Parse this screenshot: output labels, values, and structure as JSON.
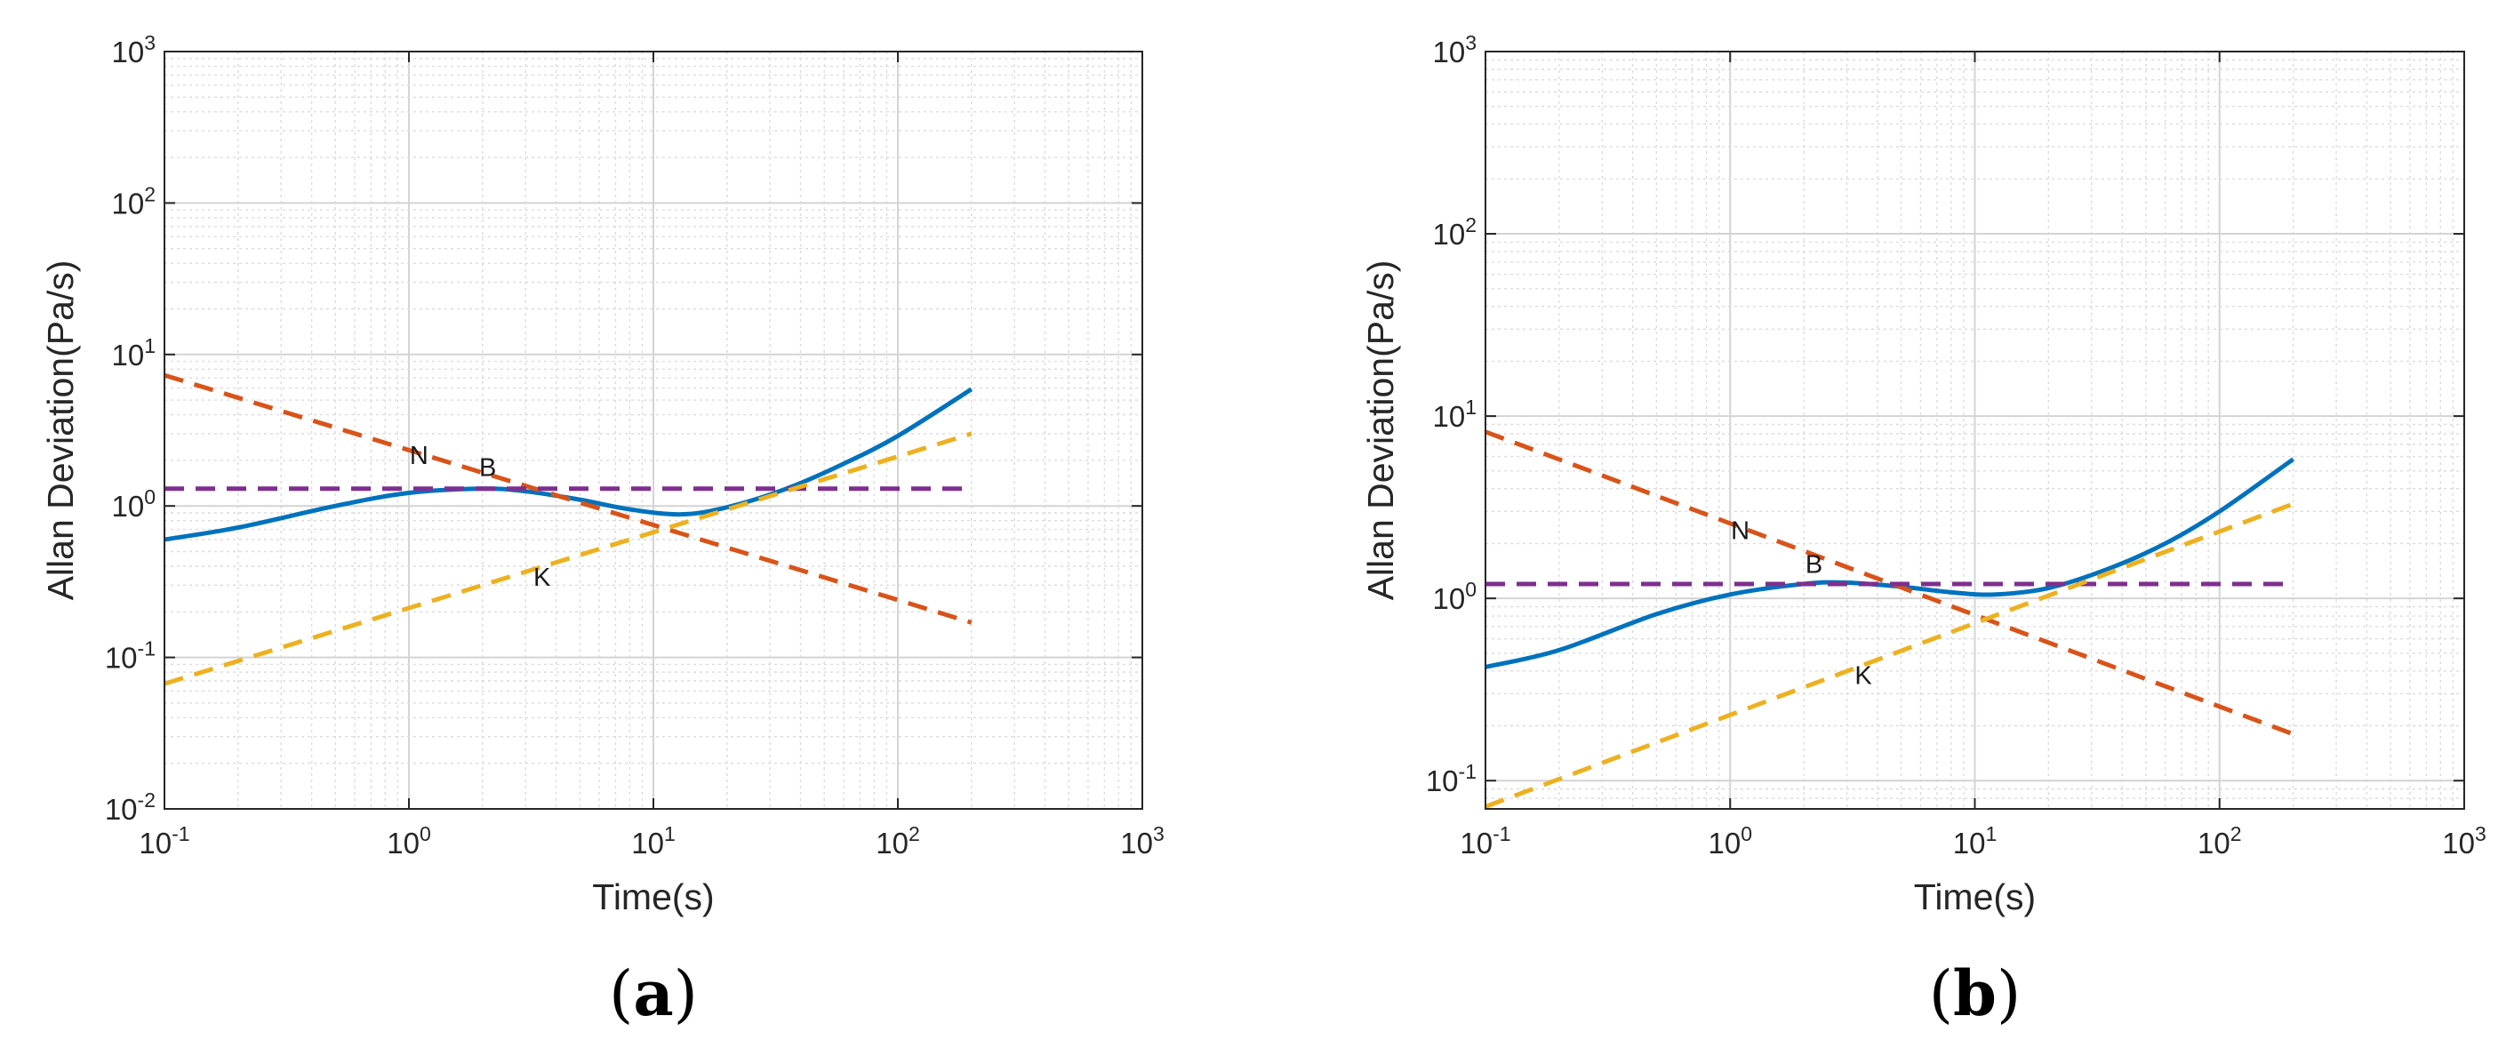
{
  "chart_data": [
    {
      "type": "line",
      "scale": {
        "x": "log",
        "y": "log"
      },
      "panel_label": "a",
      "xlabel": "Time(s)",
      "ylabel": "Allan Deviation(Pa/s)",
      "xlim": [
        0.1,
        1000
      ],
      "ylim": [
        0.01,
        1000
      ],
      "x_ticks": [
        {
          "base": "10",
          "exp": "-1"
        },
        {
          "base": "10",
          "exp": "0"
        },
        {
          "base": "10",
          "exp": "1"
        },
        {
          "base": "10",
          "exp": "2"
        },
        {
          "base": "10",
          "exp": "3"
        }
      ],
      "y_ticks": [
        {
          "base": "10",
          "exp": "-2"
        },
        {
          "base": "10",
          "exp": "-1"
        },
        {
          "base": "10",
          "exp": "0"
        },
        {
          "base": "10",
          "exp": "1"
        },
        {
          "base": "10",
          "exp": "2"
        },
        {
          "base": "10",
          "exp": "3"
        }
      ],
      "grid": true,
      "series": [
        {
          "name": "Allan deviation",
          "style": "solid",
          "color": "#0072BD",
          "x": [
            0.1,
            0.2,
            0.5,
            1,
            2,
            3,
            5,
            8,
            13,
            20,
            35,
            60,
            100,
            200
          ],
          "y": [
            0.6,
            0.72,
            1.0,
            1.22,
            1.3,
            1.25,
            1.1,
            0.95,
            0.88,
            0.98,
            1.3,
            1.9,
            2.9,
            5.9
          ]
        },
        {
          "name": "N",
          "style": "dashed",
          "color": "#D95319",
          "x": [
            0.1,
            200
          ],
          "y": [
            7.3,
            0.17
          ]
        },
        {
          "name": "B",
          "style": "dashed",
          "color": "#7E2F8E",
          "x": [
            0.1,
            200
          ],
          "y": [
            1.3,
            1.3
          ]
        },
        {
          "name": "K",
          "style": "dashed",
          "color": "#EDB120",
          "x": [
            0.1,
            200
          ],
          "y": [
            0.067,
            3.0
          ]
        }
      ],
      "annotations": [
        {
          "text": "N",
          "x": 1.1,
          "y": 2.1
        },
        {
          "text": "B",
          "x": 2.1,
          "y": 1.75
        },
        {
          "text": "K",
          "x": 3.5,
          "y": 0.33
        }
      ]
    },
    {
      "type": "line",
      "scale": {
        "x": "log",
        "y": "log"
      },
      "panel_label": "b",
      "xlabel": "Time(s)",
      "ylabel": "Allan Deviation(Pa/s)",
      "xlim": [
        0.1,
        1000
      ],
      "ylim": [
        0.07,
        1000
      ],
      "x_ticks": [
        {
          "base": "10",
          "exp": "-1"
        },
        {
          "base": "10",
          "exp": "0"
        },
        {
          "base": "10",
          "exp": "1"
        },
        {
          "base": "10",
          "exp": "2"
        },
        {
          "base": "10",
          "exp": "3"
        }
      ],
      "y_ticks": [
        {
          "base": "10",
          "exp": "-1"
        },
        {
          "base": "10",
          "exp": "0"
        },
        {
          "base": "10",
          "exp": "1"
        },
        {
          "base": "10",
          "exp": "2"
        },
        {
          "base": "10",
          "exp": "3"
        }
      ],
      "grid": true,
      "series": [
        {
          "name": "Allan deviation",
          "style": "solid",
          "color": "#0072BD",
          "x": [
            0.1,
            0.2,
            0.5,
            1,
            2,
            3,
            5,
            8,
            12,
            20,
            35,
            60,
            100,
            200
          ],
          "y": [
            0.42,
            0.52,
            0.82,
            1.05,
            1.2,
            1.22,
            1.16,
            1.08,
            1.05,
            1.14,
            1.45,
            2.0,
            3.0,
            5.8
          ]
        },
        {
          "name": "N",
          "style": "dashed",
          "color": "#D95319",
          "x": [
            0.1,
            200
          ],
          "y": [
            8.2,
            0.18
          ]
        },
        {
          "name": "B",
          "style": "dashed",
          "color": "#7E2F8E",
          "x": [
            0.1,
            200
          ],
          "y": [
            1.2,
            1.2
          ]
        },
        {
          "name": "K",
          "style": "dashed",
          "color": "#EDB120",
          "x": [
            0.1,
            200
          ],
          "y": [
            0.072,
            3.3
          ]
        }
      ],
      "annotations": [
        {
          "text": "N",
          "x": 1.1,
          "y": 2.3
        },
        {
          "text": "B",
          "x": 2.2,
          "y": 1.5
        },
        {
          "text": "K",
          "x": 3.5,
          "y": 0.37
        }
      ]
    }
  ]
}
